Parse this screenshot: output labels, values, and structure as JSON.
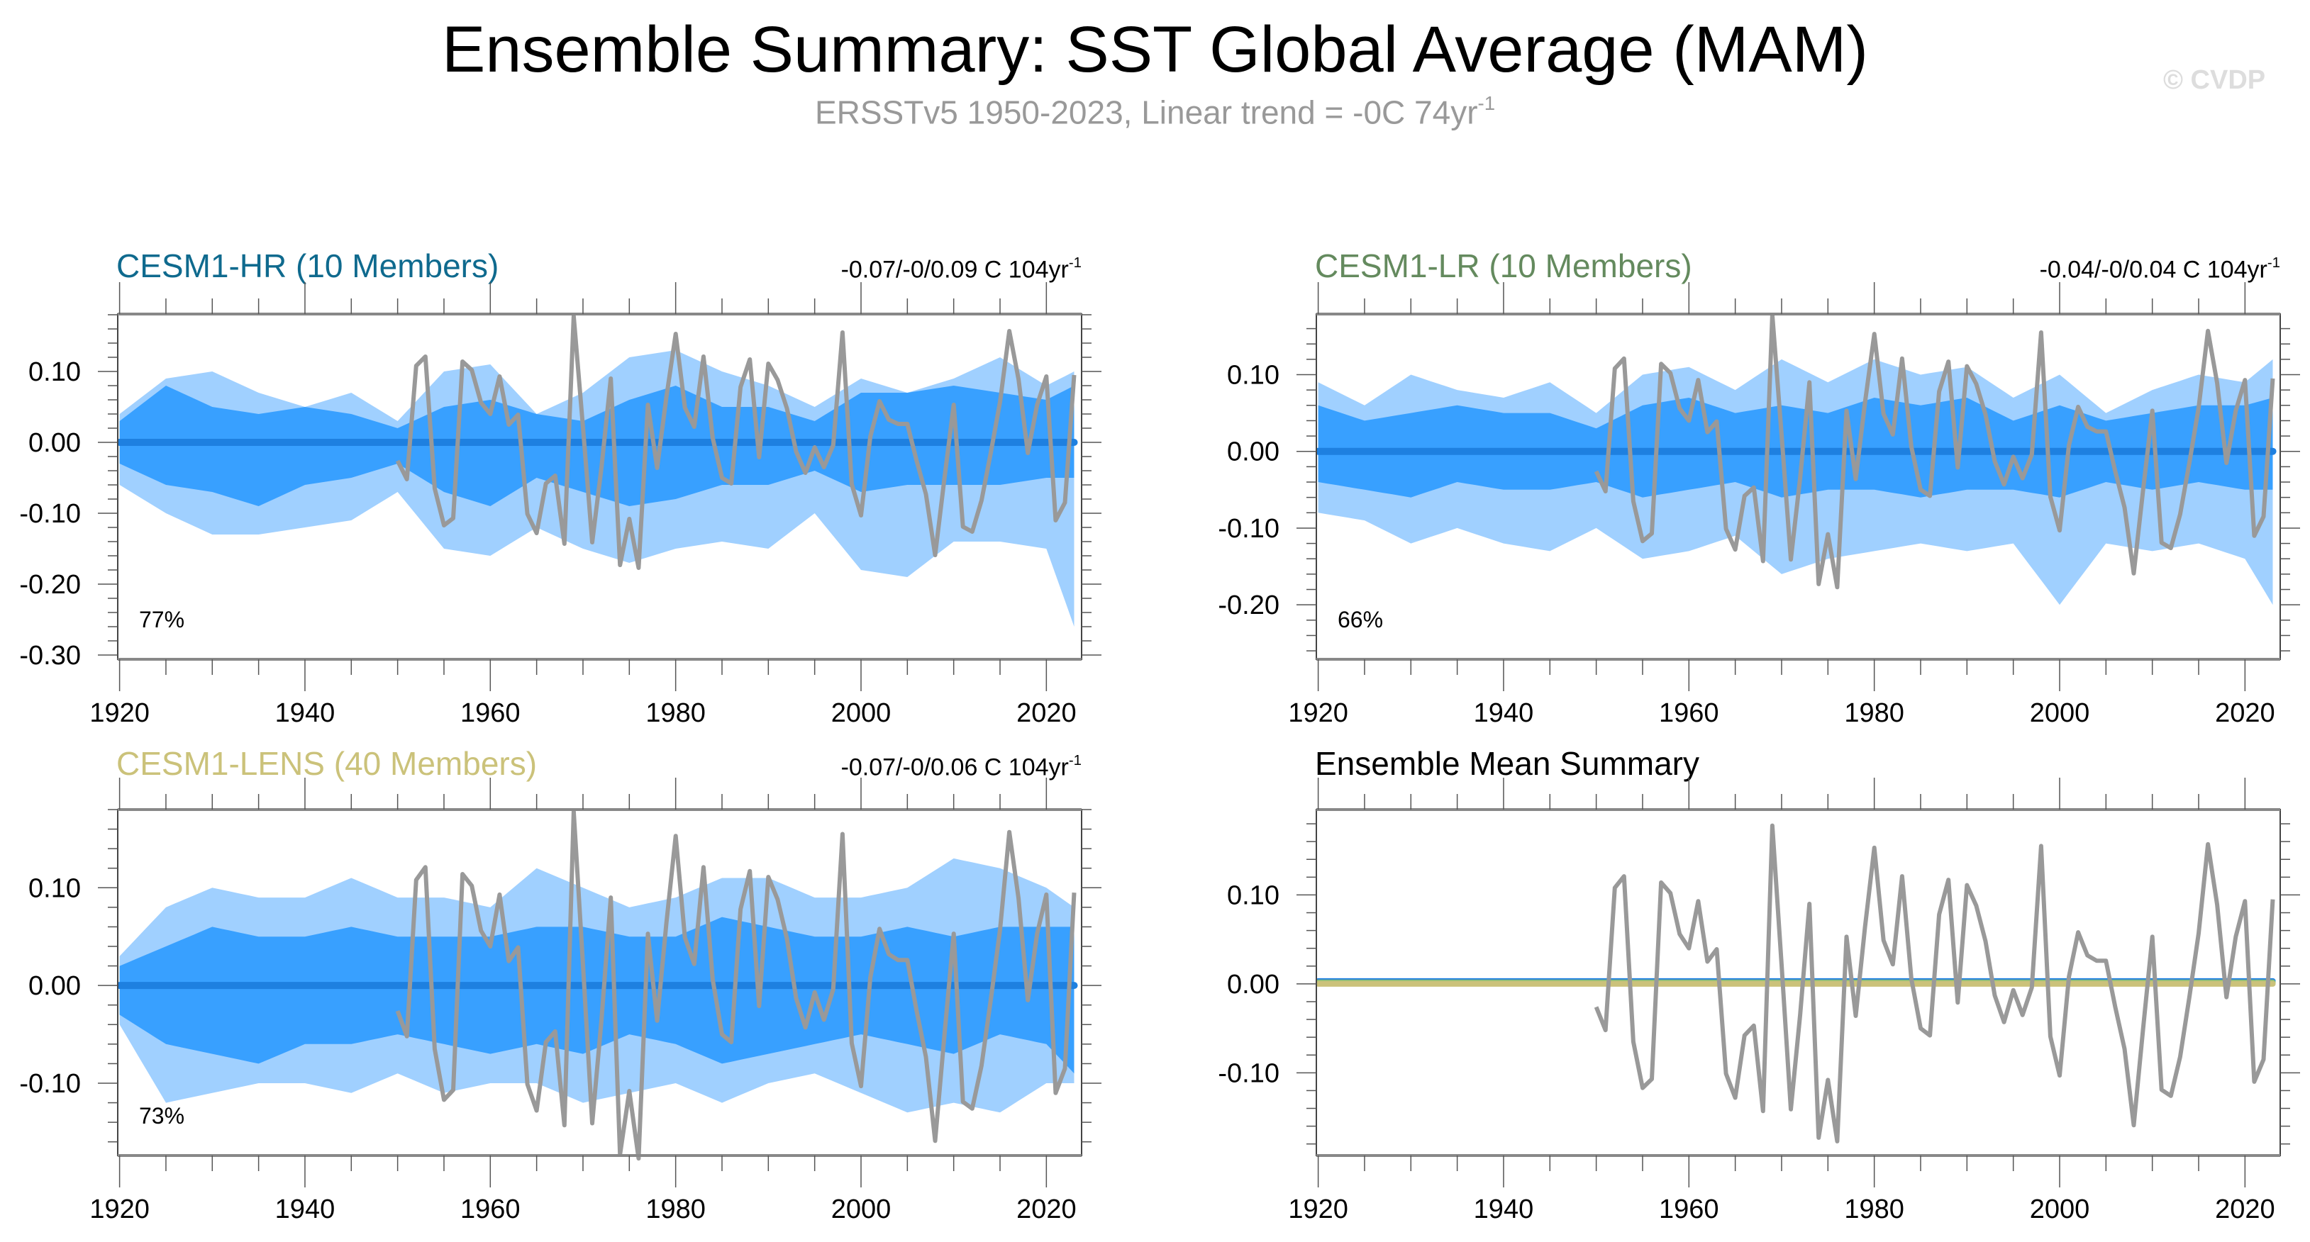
{
  "title": "Ensemble Summary: SST Global Average (MAM)",
  "subtitle": {
    "text": "ERSSTv5 1950-2023, Linear trend = -0C 74yr",
    "sup": "-1"
  },
  "watermark": "© CVDP",
  "colors": {
    "outer_band": "#a0d0ff",
    "inner_band": "#38a0ff",
    "ens_mean": "#1e80e0",
    "obs": "#999999",
    "hr": "#0f6a8e",
    "lr": "#648a5e",
    "lens": "#cbc27a"
  },
  "chart_data": [
    {
      "id": "hr",
      "type": "area",
      "title": "CESM1-HR (10 Members)",
      "trend": "-0.07/-0/0.09 C 104yr",
      "trend_sup": "-1",
      "percent": "77%",
      "xlim": [
        1919.8,
        2023.8
      ],
      "ylim": [
        -0.306,
        0.181
      ],
      "xticks": [
        1920,
        1940,
        1960,
        1980,
        2000,
        2020
      ],
      "yticks": [
        0.1,
        0.0,
        -0.1,
        -0.2,
        -0.3
      ],
      "ytick_labels": [
        "0.10",
        "0.00",
        "-0.10",
        "-0.20",
        "-0.30"
      ],
      "band_years": [
        1920,
        1925,
        1930,
        1935,
        1940,
        1945,
        1950,
        1955,
        1960,
        1965,
        1970,
        1975,
        1980,
        1985,
        1990,
        1995,
        2000,
        2005,
        2010,
        2015,
        2020,
        2023
      ],
      "outer_upper": [
        0.04,
        0.09,
        0.1,
        0.07,
        0.05,
        0.07,
        0.03,
        0.1,
        0.11,
        0.04,
        0.07,
        0.12,
        0.13,
        0.1,
        0.08,
        0.05,
        0.09,
        0.07,
        0.09,
        0.12,
        0.08,
        0.1
      ],
      "inner_upper": [
        0.03,
        0.08,
        0.05,
        0.04,
        0.05,
        0.04,
        0.02,
        0.05,
        0.06,
        0.04,
        0.03,
        0.06,
        0.08,
        0.05,
        0.05,
        0.03,
        0.07,
        0.07,
        0.08,
        0.07,
        0.06,
        0.08
      ],
      "inner_lower": [
        -0.03,
        -0.06,
        -0.07,
        -0.09,
        -0.06,
        -0.05,
        -0.03,
        -0.07,
        -0.09,
        -0.05,
        -0.07,
        -0.09,
        -0.08,
        -0.06,
        -0.06,
        -0.04,
        -0.07,
        -0.06,
        -0.06,
        -0.06,
        -0.05,
        -0.05
      ],
      "outer_lower": [
        -0.06,
        -0.1,
        -0.13,
        -0.13,
        -0.12,
        -0.11,
        -0.07,
        -0.15,
        -0.16,
        -0.12,
        -0.15,
        -0.17,
        -0.15,
        -0.14,
        -0.15,
        -0.1,
        -0.18,
        -0.19,
        -0.14,
        -0.14,
        -0.15,
        -0.26
      ]
    },
    {
      "id": "lr",
      "type": "area",
      "title": "CESM1-LR (10 Members)",
      "trend": "-0.04/-0/0.04 C 104yr",
      "trend_sup": "-1",
      "percent": "66%",
      "xlim": [
        1919.8,
        2023.8
      ],
      "ylim": [
        -0.271,
        0.179
      ],
      "xticks": [
        1920,
        1940,
        1960,
        1980,
        2000,
        2020
      ],
      "yticks": [
        0.1,
        0.0,
        -0.1,
        -0.2
      ],
      "ytick_labels": [
        "0.10",
        "0.00",
        "-0.10",
        "-0.20"
      ],
      "band_years": [
        1920,
        1925,
        1930,
        1935,
        1940,
        1945,
        1950,
        1955,
        1960,
        1965,
        1970,
        1975,
        1980,
        1985,
        1990,
        1995,
        2000,
        2005,
        2010,
        2015,
        2020,
        2023
      ],
      "outer_upper": [
        0.09,
        0.06,
        0.1,
        0.08,
        0.07,
        0.09,
        0.05,
        0.1,
        0.11,
        0.08,
        0.12,
        0.09,
        0.12,
        0.1,
        0.11,
        0.07,
        0.1,
        0.05,
        0.08,
        0.1,
        0.09,
        0.12
      ],
      "inner_upper": [
        0.06,
        0.04,
        0.05,
        0.06,
        0.05,
        0.05,
        0.03,
        0.06,
        0.07,
        0.05,
        0.06,
        0.05,
        0.07,
        0.06,
        0.07,
        0.04,
        0.06,
        0.04,
        0.05,
        0.06,
        0.06,
        0.07
      ],
      "inner_lower": [
        -0.04,
        -0.05,
        -0.06,
        -0.04,
        -0.05,
        -0.05,
        -0.04,
        -0.06,
        -0.05,
        -0.04,
        -0.06,
        -0.05,
        -0.05,
        -0.06,
        -0.05,
        -0.05,
        -0.06,
        -0.04,
        -0.05,
        -0.04,
        -0.05,
        -0.05
      ],
      "outer_lower": [
        -0.08,
        -0.09,
        -0.12,
        -0.1,
        -0.12,
        -0.13,
        -0.1,
        -0.14,
        -0.13,
        -0.11,
        -0.16,
        -0.14,
        -0.13,
        -0.12,
        -0.13,
        -0.12,
        -0.2,
        -0.12,
        -0.13,
        -0.12,
        -0.14,
        -0.2
      ]
    },
    {
      "id": "lens",
      "type": "area",
      "title": "CESM1-LENS (40 Members)",
      "trend": "-0.07/-0/0.06 C 104yr",
      "trend_sup": "-1",
      "percent": "73%",
      "xlim": [
        1919.8,
        2023.8
      ],
      "ylim": [
        -0.174,
        0.18
      ],
      "xticks": [
        1920,
        1940,
        1960,
        1980,
        2000,
        2020
      ],
      "yticks": [
        0.1,
        0.0,
        -0.1
      ],
      "ytick_labels": [
        "0.10",
        "0.00",
        "-0.10"
      ],
      "band_years": [
        1920,
        1925,
        1930,
        1935,
        1940,
        1945,
        1950,
        1955,
        1960,
        1965,
        1970,
        1975,
        1980,
        1985,
        1990,
        1995,
        2000,
        2005,
        2010,
        2015,
        2020,
        2023
      ],
      "outer_upper": [
        0.03,
        0.08,
        0.1,
        0.09,
        0.09,
        0.11,
        0.09,
        0.09,
        0.08,
        0.12,
        0.1,
        0.08,
        0.09,
        0.11,
        0.11,
        0.09,
        0.09,
        0.1,
        0.13,
        0.12,
        0.1,
        0.08
      ],
      "inner_upper": [
        0.02,
        0.04,
        0.06,
        0.05,
        0.05,
        0.06,
        0.05,
        0.05,
        0.05,
        0.06,
        0.06,
        0.05,
        0.05,
        0.07,
        0.06,
        0.05,
        0.05,
        0.06,
        0.05,
        0.06,
        0.06,
        0.06
      ],
      "inner_lower": [
        -0.03,
        -0.06,
        -0.07,
        -0.08,
        -0.06,
        -0.06,
        -0.05,
        -0.06,
        -0.07,
        -0.06,
        -0.07,
        -0.05,
        -0.06,
        -0.08,
        -0.07,
        -0.06,
        -0.05,
        -0.06,
        -0.07,
        -0.05,
        -0.06,
        -0.09
      ],
      "outer_lower": [
        -0.04,
        -0.12,
        -0.11,
        -0.1,
        -0.1,
        -0.11,
        -0.09,
        -0.11,
        -0.1,
        -0.1,
        -0.12,
        -0.11,
        -0.1,
        -0.12,
        -0.1,
        -0.09,
        -0.11,
        -0.13,
        -0.12,
        -0.13,
        -0.1,
        -0.1
      ]
    },
    {
      "id": "mean",
      "type": "line",
      "title": "Ensemble Mean Summary",
      "xlim": [
        1919.8,
        2023.8
      ],
      "ylim": [
        -0.193,
        0.196
      ],
      "xticks": [
        1920,
        1940,
        1960,
        1980,
        2000,
        2020
      ],
      "yticks": [
        0.1,
        0.0,
        -0.1
      ],
      "ytick_labels": [
        "0.10",
        "0.00",
        "-0.10"
      ],
      "mean_lines": [
        {
          "name": "CESM1-HR",
          "color": "#1e80e0"
        },
        {
          "name": "CESM1-LR",
          "color": "#8fbf7a"
        },
        {
          "name": "CESM1-LENS",
          "color": "#cbc27a"
        }
      ]
    }
  ],
  "obs": {
    "name": "ERSSTv5",
    "start_year": 1950,
    "values": [
      -0.026,
      -0.052,
      0.108,
      0.121,
      -0.065,
      -0.117,
      -0.107,
      0.114,
      0.102,
      0.056,
      0.04,
      0.093,
      0.025,
      0.039,
      -0.101,
      -0.128,
      -0.058,
      -0.047,
      -0.143,
      0.178,
      0.021,
      -0.141,
      -0.035,
      0.09,
      -0.173,
      -0.108,
      -0.177,
      0.053,
      -0.036,
      0.064,
      0.153,
      0.049,
      0.022,
      0.121,
      0.006,
      -0.05,
      -0.058,
      0.078,
      0.117,
      -0.021,
      0.111,
      0.088,
      0.048,
      -0.013,
      -0.043,
      -0.007,
      -0.035,
      -0.004,
      0.155,
      -0.059,
      -0.103,
      0.008,
      0.058,
      0.032,
      0.026,
      0.026,
      -0.026,
      -0.073,
      -0.159,
      -0.051,
      0.053,
      -0.119,
      -0.126,
      -0.082,
      -0.015,
      0.057,
      0.157,
      0.089,
      -0.015,
      0.053,
      0.093,
      -0.11,
      -0.085,
      0.095
    ]
  }
}
